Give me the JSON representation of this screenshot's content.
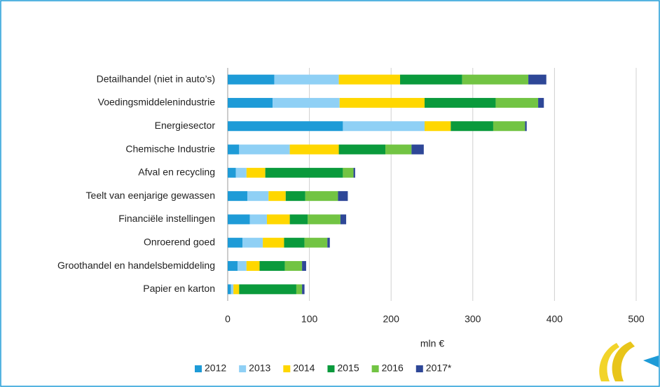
{
  "chart_data": {
    "type": "stacked_barh",
    "categories": [
      "Detailhandel (niet in auto’s)",
      "Voedingsmiddelenindustrie",
      "Energiesector",
      "Chemische Industrie",
      "Afval en recycling",
      "Teelt van eenjarige gewassen",
      "Financiële instellingen",
      "Onroerend goed",
      "Groothandel en handelsbemiddeling",
      "Papier en karton"
    ],
    "series": [
      {
        "name": "2012",
        "color": "#1e9bd7",
        "values": [
          57,
          55,
          141,
          14,
          10,
          24,
          27,
          18,
          12,
          4
        ]
      },
      {
        "name": "2013",
        "color": "#8fd0f5",
        "values": [
          79,
          82,
          100,
          62,
          13,
          26,
          21,
          25,
          11,
          3
        ]
      },
      {
        "name": "2014",
        "color": "#ffd700",
        "values": [
          75,
          104,
          32,
          60,
          23,
          21,
          28,
          26,
          16,
          7
        ]
      },
      {
        "name": "2015",
        "color": "#0a9a3c",
        "values": [
          76,
          87,
          52,
          57,
          95,
          24,
          22,
          25,
          31,
          70
        ]
      },
      {
        "name": "2016",
        "color": "#72c443",
        "values": [
          81,
          52,
          39,
          32,
          13,
          40,
          40,
          28,
          21,
          7
        ]
      },
      {
        "name": "2017*",
        "color": "#2e4797",
        "values": [
          22,
          7,
          2,
          15,
          2,
          12,
          7,
          3,
          5,
          3
        ]
      }
    ],
    "xlabel": "mln €",
    "xlim": [
      0,
      500
    ],
    "xticks": [
      0,
      100,
      200,
      300,
      400,
      500
    ],
    "grid": true,
    "legend": "bottom"
  }
}
